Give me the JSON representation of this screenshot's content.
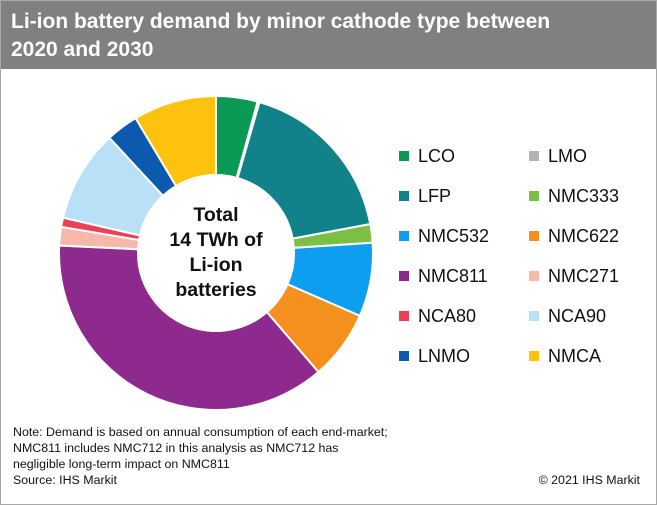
{
  "title": {
    "line1": "Li-ion battery demand by minor cathode type between",
    "line2": "2020 and 2030"
  },
  "chart_data": {
    "type": "donut",
    "title": "Li-ion battery demand by minor cathode type between 2020 and 2030",
    "center_label": [
      "Total",
      "14 TWh of",
      "Li-ion",
      "batteries"
    ],
    "total": "14 TWh",
    "units": "share of total demand (%)",
    "legend_position": "right",
    "slices": [
      {
        "label": "LCO",
        "value": 4.5,
        "color": "#0a9a55"
      },
      {
        "label": "LMO",
        "value": 0.2,
        "color": "#b3b3b3"
      },
      {
        "label": "LFP",
        "value": 18.5,
        "color": "#12828a"
      },
      {
        "label": "NMC333",
        "value": 2.0,
        "color": "#7cbf45"
      },
      {
        "label": "NMC532",
        "value": 8.0,
        "color": "#0e9ef0"
      },
      {
        "label": "NMC622",
        "value": 7.5,
        "color": "#f4901e"
      },
      {
        "label": "NMC811",
        "value": 39.0,
        "color": "#8e2a8e"
      },
      {
        "label": "NMC271",
        "value": 2.0,
        "color": "#f5b8ab"
      },
      {
        "label": "NCA80",
        "value": 1.0,
        "color": "#ee4055"
      },
      {
        "label": "NCA90",
        "value": 10.0,
        "color": "#b8e0f6"
      },
      {
        "label": "LNMO",
        "value": 3.5,
        "color": "#0b5aae"
      },
      {
        "label": "NMCA",
        "value": 9.0,
        "color": "#ffc20e"
      }
    ]
  },
  "notes": [
    "Note: Demand is based on annual consumption of each end-market;",
    "NMC811 includes NMC712 in this analysis as NMC712 has",
    "negligible long-term impact on NMC811",
    "Source: IHS Markit"
  ],
  "copyright": "© 2021 IHS Markit"
}
